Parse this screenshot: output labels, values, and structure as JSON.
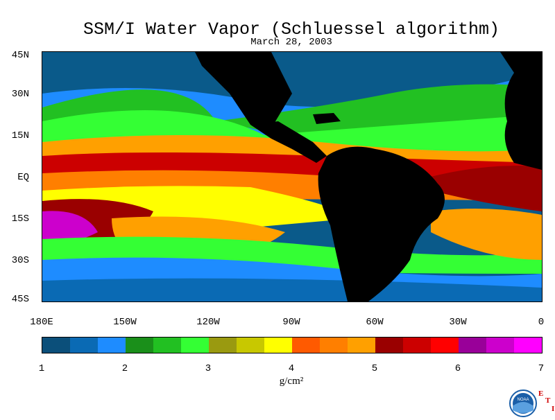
{
  "title": "SSM/I Water Vapor (Schluessel algorithm)",
  "date": "March 28, 2003",
  "y_axis_labels": [
    "45N",
    "30N",
    "15N",
    "EQ",
    "15S",
    "30S",
    "45S"
  ],
  "x_axis_labels": [
    "180E",
    "150W",
    "120W",
    "90W",
    "60W",
    "30W",
    "0"
  ],
  "colorbar": {
    "colors": [
      "#0b4f7a",
      "#0a6ab4",
      "#1e8cff",
      "#1a8f1a",
      "#22c022",
      "#34ff34",
      "#9a9a10",
      "#c8c800",
      "#ffff00",
      "#ff5a00",
      "#ff7f00",
      "#ffa000",
      "#9a0000",
      "#cc0000",
      "#ff0000",
      "#990099",
      "#cc00cc",
      "#ff00ff"
    ],
    "tick_labels": [
      "1",
      "2",
      "3",
      "4",
      "5",
      "6",
      "7"
    ]
  },
  "unit_label": "g/cm²",
  "logo": {
    "icon": "noaa-logo-icon",
    "text": "NOAA"
  },
  "eti": [
    "E",
    "T",
    "I"
  ]
}
